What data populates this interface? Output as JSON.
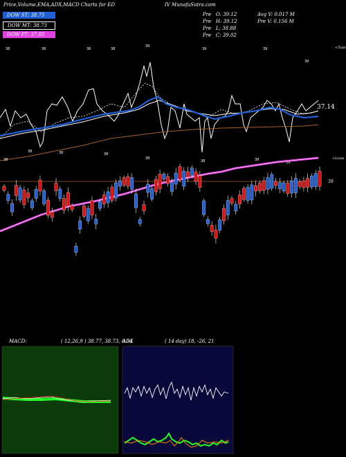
{
  "header": {
    "left_title": "Price,Volume,EMA,ADX,MACD Charts for ED",
    "right_title": "IV MunafaSutra.com",
    "stats": [
      {
        "label": "Pre",
        "value": "O: 39.12"
      },
      {
        "label": "Pre",
        "value": "H: 39.12"
      },
      {
        "label": "Pre",
        "value": "L: 38.88"
      },
      {
        "label": "Pre",
        "value": "C: 39.02"
      }
    ],
    "avg_volume": "Avg V: 0.017 M",
    "pre_volume": "Pre  V: 0.156  M"
  },
  "legend": [
    {
      "label": "DOW ST: 38.75",
      "color": "#1f5fd6"
    },
    {
      "label": "DOW MT: 38.73",
      "color": "#ffffff"
    },
    {
      "label": "DOW PT: 37.85",
      "color": "#e040e0"
    }
  ],
  "main": {
    "top_label": "<Tops",
    "lows_label": "<Lows",
    "price_label": "37.14",
    "ref_label": "39"
  },
  "macd": {
    "label": "MACD:",
    "params": "( 12,26,9 ) 38.77,  38.73,  0.04"
  },
  "adx": {
    "label": "ADX",
    "params": "( 14  day) 18,  -26,  21"
  },
  "colors": {
    "up": "#1f5fd6",
    "down": "#e01010",
    "pink": "#e040e0",
    "brown": "#a8602a",
    "macd_bg": "#0b3a0b",
    "adx_bg": "#08083a"
  },
  "chart_data": {
    "type": "candlestick",
    "title": "Price,Volume,EMA,ADX,MACD Charts for ED",
    "reference_line": 39,
    "candles_pattern": [
      "down",
      "up",
      "up",
      "down",
      "up",
      "down",
      "down",
      "up",
      "up",
      "down",
      "up",
      "down",
      "down",
      "down",
      "up",
      "down",
      "down",
      "down",
      "up",
      "up",
      "down",
      "up",
      "down",
      "up",
      "up",
      "down",
      "up",
      "down",
      "up",
      "up",
      "down",
      "down",
      "up",
      "up",
      "up",
      "down",
      "up",
      "up",
      "down",
      "down",
      "up",
      "down",
      "up",
      "up",
      "down",
      "up",
      "down",
      "up",
      "down",
      "down",
      "up",
      "up",
      "down",
      "down",
      "up",
      "down",
      "up",
      "down",
      "up",
      "down",
      "down",
      "up",
      "up",
      "down",
      "down",
      "down",
      "up",
      "up",
      "down",
      "up",
      "up",
      "down",
      "up",
      "up",
      "down",
      "down",
      "down",
      "up",
      "up",
      "down"
    ]
  }
}
